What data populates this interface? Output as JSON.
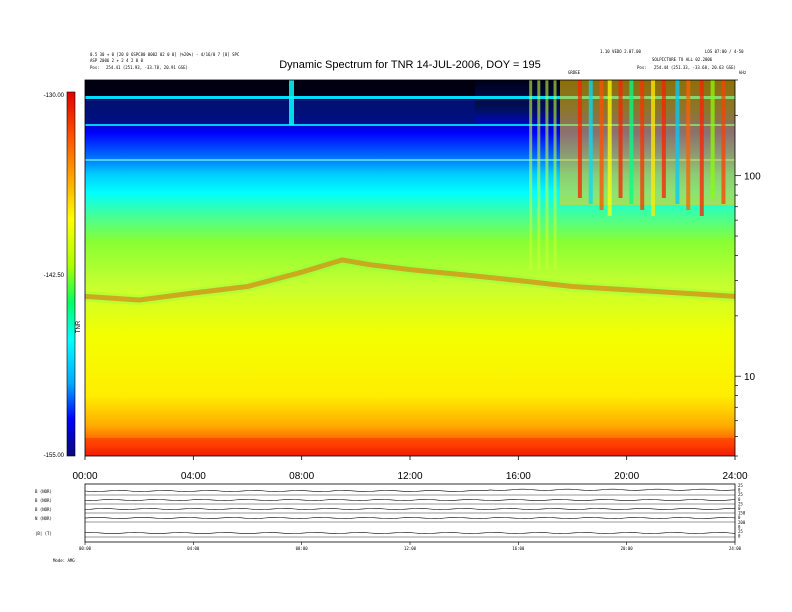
{
  "header": {
    "title": "Dynamic Spectrum for TNR 14-JUL-2006, DOY = 195",
    "left_line1": "0.5 30 + 0 [20 0 6SPC80 0002 02 0 0] (%20%) - 4/16/0 7 [0] SPC",
    "left_line2": "ASP 2006 2 + 2 4 2 0 0",
    "left_pos_label": "Pos:",
    "left_pos_value": "254.41 (251.93, -33.78, 20.91 GSE)",
    "right_line1": "1.10 VEDO 2.07.00",
    "right_line2": "LOS 07:00 / 4-50",
    "right_line3": "SOLPICTURE TO ALL 02.2006",
    "right_pos_label": "Pos:",
    "right_pos_value": "254.44 (251.33, -33.68, 20.63 GSE)",
    "marker_label": "GRDEE",
    "unit_label": "kHz"
  },
  "colorbar": {
    "top_label": "-130.00",
    "mid_label": "-142.50",
    "bottom_label": "-155.00",
    "side_label": "TNR"
  },
  "chart_data": {
    "type": "heatmap",
    "title": "Dynamic Spectrum for TNR 14-JUL-2006, DOY = 195",
    "x": [
      "00:00",
      "04:00",
      "08:00",
      "12:00",
      "16:00",
      "20:00",
      "24:00"
    ],
    "xlim": [
      0,
      24
    ],
    "y_ticks": [
      10,
      100
    ],
    "ylim": [
      4,
      300
    ],
    "y_scale": "log",
    "y_unit": "kHz",
    "colorbar_range": [
      -155.0,
      -130.0
    ],
    "colorbar_ticks": [
      -130.0,
      -142.5,
      -155.0
    ],
    "colormap": [
      "#0a0a7a",
      "#0000ff",
      "#00aaff",
      "#00ffff",
      "#00ff66",
      "#a8ff00",
      "#ffff00",
      "#ffb000",
      "#ff4000",
      "#e00000"
    ],
    "band_feature_hours": [
      0,
      2,
      4,
      6,
      8,
      9.5,
      10.5,
      12,
      14,
      16,
      18,
      20,
      22,
      24
    ],
    "band_feature_khz": [
      25,
      24,
      26,
      28,
      33,
      38,
      36,
      34,
      32,
      30,
      28,
      27,
      26,
      25
    ]
  },
  "lower_panel": {
    "labels": [
      "B (NOR)",
      "B (NOR)",
      "B (NOR)",
      "N (NOR)",
      "|B| (T)"
    ],
    "right_labels": [
      "25",
      "0",
      "25",
      "0",
      "25",
      "0",
      "150",
      "0",
      "200",
      "0",
      "25",
      "0"
    ],
    "x_ticks": [
      "00:00",
      "04:00",
      "08:00",
      "12:00",
      "16:00",
      "20:00",
      "24:00"
    ],
    "footer_label": "Mode: AMG"
  }
}
